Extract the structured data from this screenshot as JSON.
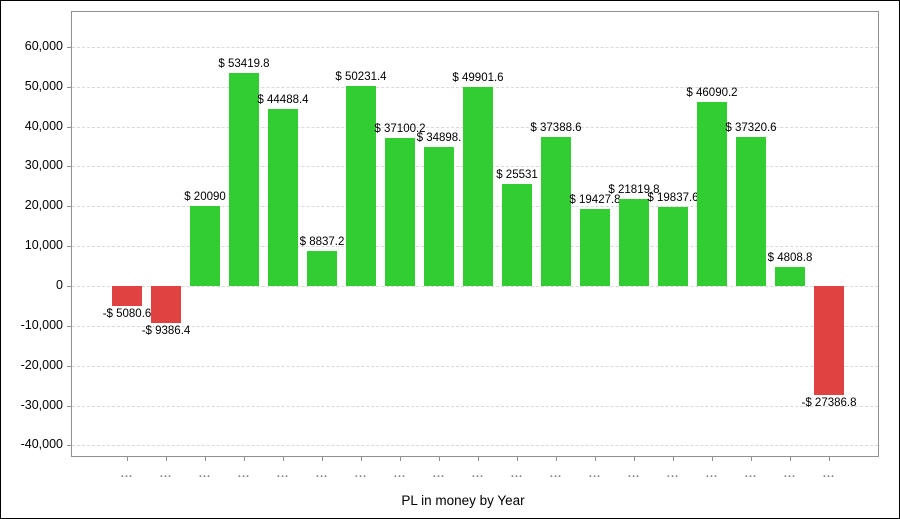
{
  "chart_data": {
    "type": "bar",
    "title": "PL in money by Year",
    "xlabel": "PL in money by Year",
    "ylabel": "",
    "ylim": [
      -42900,
      69000
    ],
    "grid": "horizontal-dashed",
    "legend": "none",
    "y_ticks": [
      60000,
      50000,
      40000,
      30000,
      20000,
      10000,
      0,
      -10000,
      -20000,
      -30000,
      -40000
    ],
    "y_tick_labels": [
      "60,000",
      "50,000",
      "40,000",
      "30,000",
      "20,000",
      "10,000",
      "0",
      "-10,000",
      "-20,000",
      "-30,000",
      "-40,000"
    ],
    "categories": [
      "...",
      "...",
      "...",
      "...",
      "...",
      "...",
      "...",
      "...",
      "...",
      "...",
      "...",
      "...",
      "...",
      "...",
      "...",
      "...",
      "...",
      "...",
      "..."
    ],
    "values": [
      -5080.6,
      -9386.4,
      20090,
      53419.8,
      44488.4,
      8837.2,
      50231.4,
      37100.2,
      34898,
      49901.6,
      25531,
      37388.6,
      19427.8,
      21819.8,
      19837.6,
      46090.2,
      37320.6,
      4808.8,
      -27386.8
    ],
    "bar_labels": [
      "-$ 5080.6",
      "-$ 9386.4",
      "$ 20090",
      "$ 53419.8",
      "$ 44488.4",
      "$ 8837.2",
      "$ 50231.4",
      "$ 37100.2",
      "$ 34898.",
      "$ 49901.6",
      "$ 25531",
      "$ 37388.6",
      "$ 19427.8",
      "$ 21819.8",
      "$ 19837.6",
      "$ 46090.2",
      "$ 37320.6",
      "$ 4808.8",
      "-$ 27386.8"
    ],
    "colors": {
      "positive_bar": "#32CD32",
      "negative_bar": "#E04141",
      "gridline": "#D9D9D9",
      "axis_border": "#909090",
      "x_tick_label": "#808080",
      "text": "#000000",
      "background": "#FFFFFF"
    }
  }
}
